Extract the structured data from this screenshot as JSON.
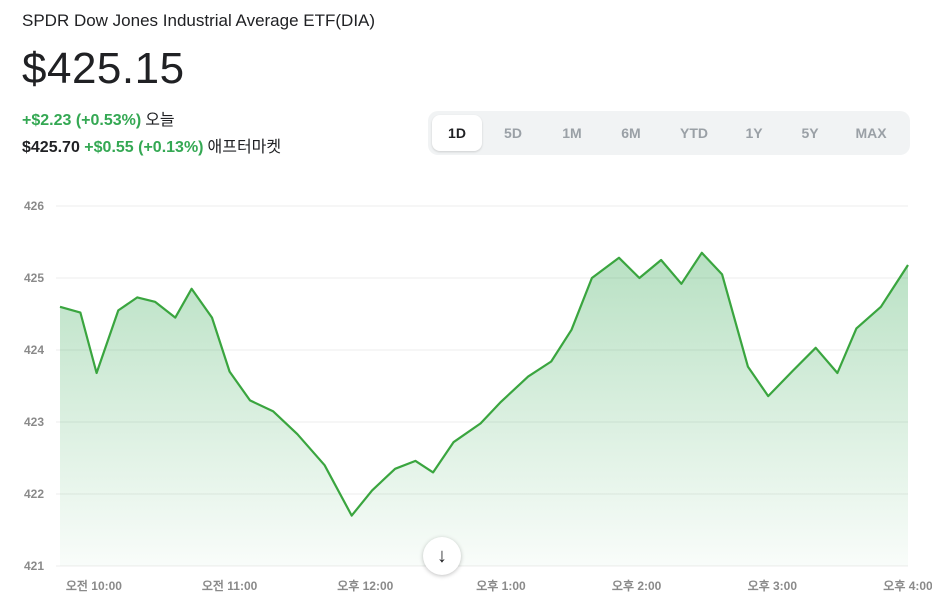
{
  "header": {
    "title": "SPDR Dow Jones Industrial Average ETF(DIA)",
    "price": "$425.15",
    "today_change": "+$2.23 (+0.53%)",
    "today_label": "오늘",
    "after_price": "$425.70",
    "after_change": "+$0.55 (+0.13%)",
    "after_label": "애프터마켓"
  },
  "ranges": [
    {
      "label": "1D",
      "active": true
    },
    {
      "label": "5D",
      "active": false
    },
    {
      "label": "1M",
      "active": false
    },
    {
      "label": "6M",
      "active": false
    },
    {
      "label": "YTD",
      "active": false
    },
    {
      "label": "1Y",
      "active": false
    },
    {
      "label": "5Y",
      "active": false
    },
    {
      "label": "MAX",
      "active": false
    }
  ],
  "scroll_button": {
    "icon": "arrow-down-icon",
    "glyph": "↓"
  },
  "colors": {
    "line": "#3aa53f",
    "fill": "#34a853",
    "grid": "#ececec",
    "axis_text": "#8a8a8a"
  },
  "chart_data": {
    "type": "area",
    "title": "",
    "xlabel": "",
    "ylabel": "",
    "ylim": [
      421,
      426
    ],
    "y_ticks": [
      "421",
      "422",
      "423",
      "424",
      "425",
      "426"
    ],
    "x_ticks": [
      "오전 10:00",
      "오전 11:00",
      "오후 12:00",
      "오후 1:00",
      "오후 2:00",
      "오후 3:00",
      "오후 4:00"
    ],
    "x_tick_hours": [
      10,
      11,
      12,
      13,
      14,
      15,
      16
    ],
    "x_range": [
      9.75,
      16
    ],
    "grid": true,
    "series": [
      {
        "x": [
          9.75,
          9.9,
          10.02,
          10.18,
          10.32,
          10.45,
          10.6,
          10.72,
          10.87,
          11.0,
          11.15,
          11.32,
          11.5,
          11.7,
          11.9,
          12.05,
          12.22,
          12.37,
          12.5,
          12.65,
          12.85,
          13.0,
          13.2,
          13.37,
          13.52,
          13.67,
          13.87,
          14.02,
          14.18,
          14.33,
          14.48,
          14.63,
          14.82,
          14.97,
          15.15,
          15.32,
          15.48,
          15.62,
          15.8,
          16.0
        ],
        "y": [
          424.6,
          424.52,
          423.68,
          424.55,
          424.73,
          424.67,
          424.45,
          424.85,
          424.45,
          423.7,
          423.3,
          423.15,
          422.83,
          422.4,
          421.7,
          422.05,
          422.35,
          422.46,
          422.3,
          422.72,
          422.98,
          423.28,
          423.63,
          423.84,
          424.28,
          425.0,
          425.28,
          425.0,
          425.25,
          424.92,
          425.35,
          425.05,
          423.77,
          423.36,
          423.71,
          424.03,
          423.68,
          424.3,
          424.6,
          425.18
        ]
      }
    ]
  }
}
